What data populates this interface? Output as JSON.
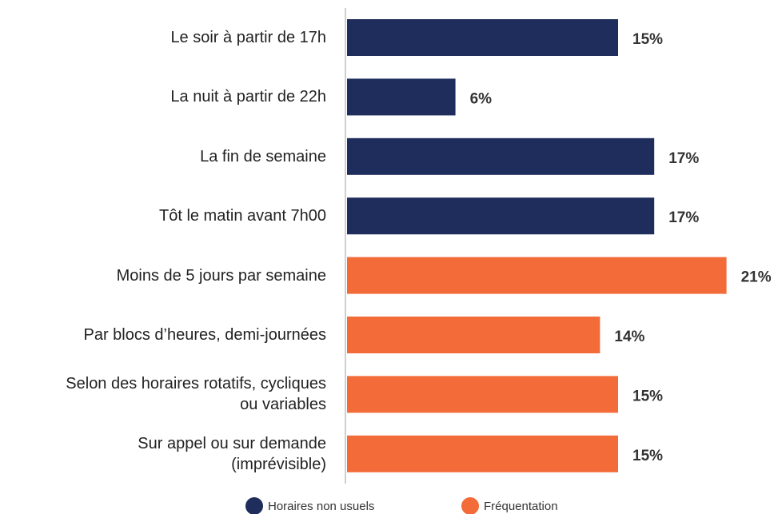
{
  "chart_data": {
    "type": "barh",
    "categories": [
      "Le soir à partir de 17h",
      "La nuit à partir de 22h",
      "La fin de semaine",
      "Tôt le matin avant 7h00",
      "Moins de 5 jours par semaine",
      "Par blocs d’heures, demi-journées",
      "Selon des horaires rotatifs, cycliques\nou variables",
      "Sur appel ou sur demande\n(imprévisible)"
    ],
    "series": [
      {
        "name": "Horaires non usuels",
        "color": "#1f2d5c",
        "values": [
          15,
          6,
          17,
          17,
          null,
          null,
          null,
          null
        ],
        "value_labels": [
          "15%",
          "6%",
          "17%",
          "17%",
          null,
          null,
          null,
          null
        ]
      },
      {
        "name": "Fréquentation",
        "color": "#f26b38",
        "values": [
          null,
          null,
          null,
          null,
          21,
          14,
          15,
          15
        ],
        "value_labels": [
          null,
          null,
          null,
          null,
          "21%",
          "14%",
          "15%",
          "15%"
        ]
      }
    ]
  }
}
